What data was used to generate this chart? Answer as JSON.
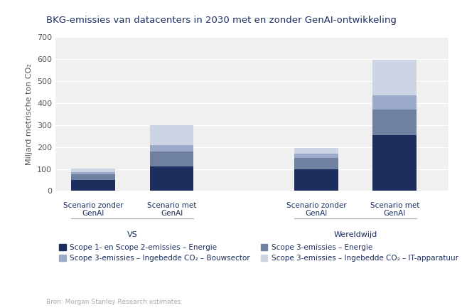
{
  "title": "BKG-emissies van datacenters in 2030 met en zonder GenAI-ontwikkeling",
  "ylabel": "Miljard metrische ton CO₂",
  "source": "Bron: Morgan Stanley Research estimates",
  "groups": [
    "VS",
    "Wereldwijd"
  ],
  "bar_labels": [
    "Scenario zonder\nGenAI",
    "Scenario met\nGenAI"
  ],
  "categories": [
    "Scope 1- en Scope 2-emissies – Energie",
    "Scope 3-emissies – Energie",
    "Scope 3-emissies – Ingebedde CO₂ – Bouwsector",
    "Scope 3-emissies – Ingebedde CO₂ – IT-apparatuur"
  ],
  "colors": [
    "#1b2e5e",
    "#7080a0",
    "#9aaac8",
    "#cdd4e4"
  ],
  "data": {
    "VS": {
      "zonder": [
        50,
        25,
        12,
        15
      ],
      "met": [
        110,
        70,
        30,
        90
      ]
    },
    "Wereldwijd": {
      "zonder": [
        100,
        50,
        20,
        25
      ],
      "met": [
        255,
        115,
        65,
        160
      ]
    }
  },
  "ylim": [
    0,
    700
  ],
  "yticks": [
    0,
    100,
    200,
    300,
    400,
    500,
    600,
    700
  ],
  "background_color": "#ffffff",
  "plot_background": "#f0f0f0",
  "title_fontsize": 9.5,
  "tick_fontsize": 8,
  "ylabel_fontsize": 8,
  "bar_label_fontsize": 7.5,
  "group_label_fontsize": 8,
  "legend_fontsize": 7.5,
  "source_fontsize": 6.5
}
